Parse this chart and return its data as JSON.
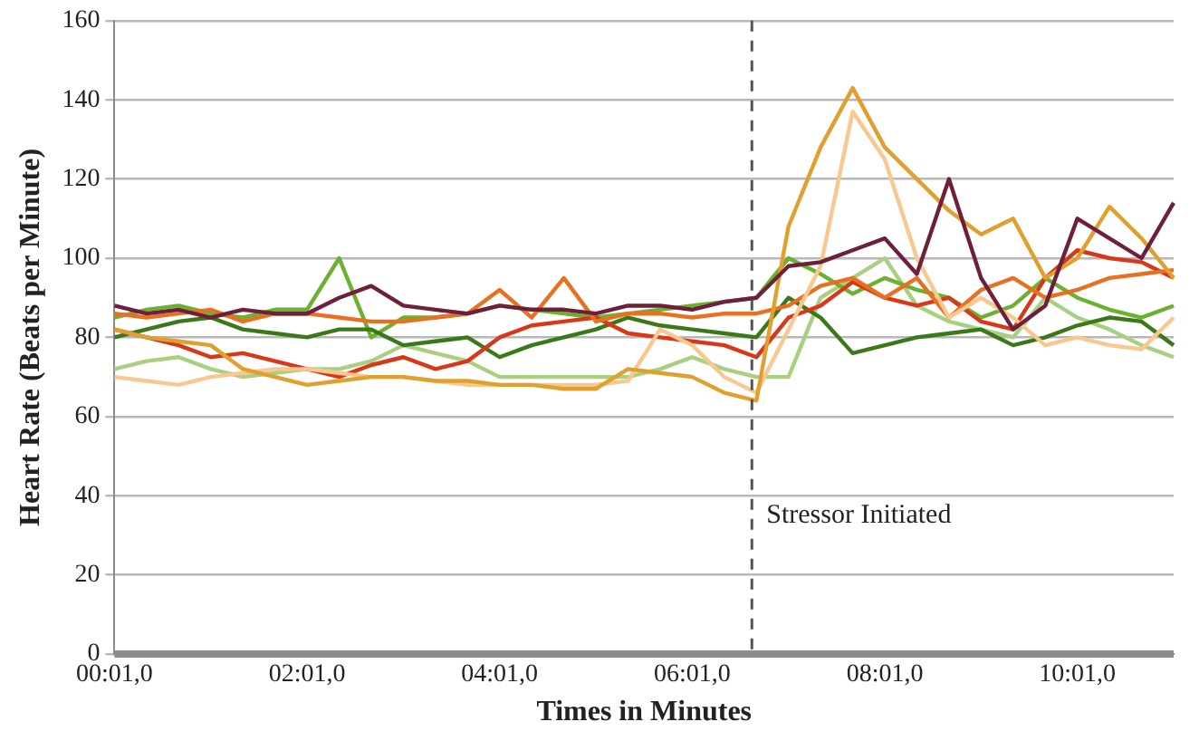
{
  "chart_data": {
    "type": "line",
    "xlabel": "Times in Minutes",
    "ylabel": "Heart Rate (Beats per Minute)",
    "categories": [
      "00:01,0",
      null,
      null,
      null,
      null,
      null,
      "02:01,0",
      null,
      null,
      null,
      null,
      null,
      "04:01,0",
      null,
      null,
      null,
      null,
      null,
      "06:01,0",
      null,
      null,
      null,
      null,
      null,
      "08:01,0",
      null,
      null,
      null,
      null,
      null,
      "10:01,0",
      null,
      null,
      null
    ],
    "ylim": [
      0,
      160
    ],
    "yticks": [
      0,
      20,
      40,
      60,
      80,
      100,
      120,
      140,
      160
    ],
    "grid": "y",
    "legend": false,
    "marker": "none",
    "line_style": "solid",
    "annotations": [
      "Stressor Initiated"
    ],
    "series": [
      {
        "color": "#6e1f3c",
        "values": [
          88,
          86,
          87,
          85,
          87,
          86,
          86,
          90,
          93,
          88,
          87,
          86,
          88,
          87,
          87,
          86,
          88,
          88,
          87,
          89,
          90,
          98,
          99,
          102,
          105,
          96,
          120,
          95,
          82,
          88,
          110,
          105,
          100,
          114
        ]
      },
      {
        "color": "#e0a030",
        "values": [
          82,
          80,
          79,
          78,
          72,
          70,
          68,
          69,
          70,
          70,
          69,
          69,
          68,
          68,
          67,
          67,
          72,
          71,
          70,
          66,
          64,
          108,
          128,
          143,
          128,
          120,
          112,
          106,
          110,
          95,
          100,
          113,
          105,
          95
        ]
      },
      {
        "color": "#f8c890",
        "values": [
          70,
          69,
          68,
          70,
          71,
          72,
          72,
          71,
          70,
          70,
          69,
          68,
          68,
          68,
          68,
          68,
          69,
          82,
          78,
          70,
          66,
          82,
          98,
          137,
          125,
          100,
          85,
          90,
          85,
          78,
          80,
          78,
          77,
          85
        ]
      },
      {
        "color": "#e87020",
        "values": [
          86,
          85,
          86,
          87,
          84,
          86,
          86,
          85,
          84,
          84,
          85,
          86,
          92,
          85,
          95,
          84,
          86,
          86,
          85,
          86,
          86,
          88,
          93,
          95,
          90,
          95,
          85,
          92,
          95,
          90,
          92,
          95,
          96,
          97
        ]
      },
      {
        "color": "#d83818",
        "values": [
          82,
          80,
          78,
          75,
          76,
          74,
          72,
          70,
          73,
          75,
          72,
          74,
          80,
          83,
          84,
          85,
          81,
          80,
          79,
          78,
          75,
          85,
          88,
          94,
          90,
          88,
          90,
          84,
          82,
          95,
          102,
          100,
          99,
          95
        ]
      },
      {
        "color": "#3a7818",
        "values": [
          80,
          82,
          84,
          85,
          82,
          81,
          80,
          82,
          82,
          78,
          79,
          80,
          75,
          78,
          80,
          82,
          85,
          83,
          82,
          81,
          80,
          90,
          85,
          76,
          78,
          80,
          81,
          82,
          78,
          80,
          83,
          85,
          84,
          78
        ]
      },
      {
        "color": "#6cb030",
        "values": [
          85,
          87,
          88,
          86,
          85,
          87,
          87,
          100,
          80,
          85,
          85,
          86,
          88,
          87,
          86,
          85,
          86,
          87,
          88,
          89,
          90,
          100,
          96,
          91,
          95,
          92,
          90,
          85,
          88,
          95,
          90,
          87,
          85,
          88
        ]
      },
      {
        "color": "#a8d080",
        "values": [
          72,
          74,
          75,
          72,
          70,
          71,
          72,
          72,
          74,
          78,
          76,
          74,
          70,
          70,
          70,
          70,
          70,
          72,
          75,
          72,
          70,
          70,
          90,
          95,
          100,
          88,
          84,
          82,
          80,
          90,
          85,
          82,
          78,
          75
        ]
      }
    ]
  }
}
